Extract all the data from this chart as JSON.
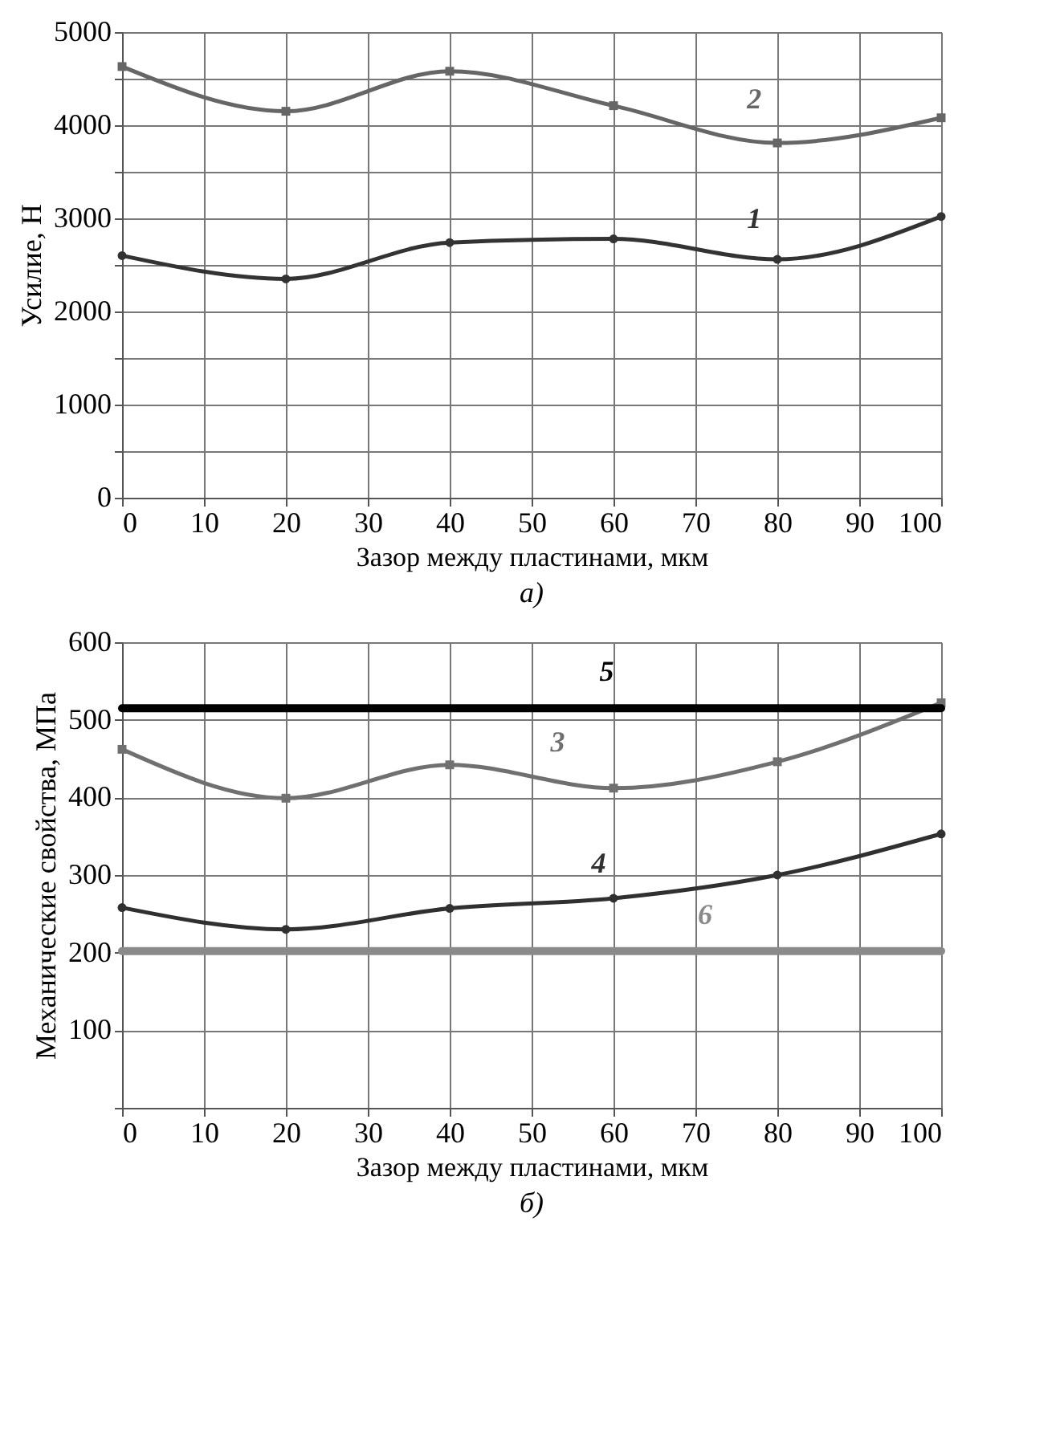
{
  "chart_data": [
    {
      "type": "line",
      "xlabel": "Зазор между пластинами, мкм",
      "ylabel": "Усилие, Н",
      "x": [
        0,
        20,
        40,
        60,
        80,
        100
      ],
      "xlim": [
        0,
        100
      ],
      "xticks": [
        0,
        10,
        20,
        30,
        40,
        50,
        60,
        70,
        80,
        90,
        100
      ],
      "ylim": [
        0,
        5000
      ],
      "yticks": [
        0,
        {
          "value": 500,
          "label": null
        },
        1000,
        {
          "value": 1500,
          "label": null
        },
        2000,
        {
          "value": 2500,
          "label": null
        },
        3000,
        {
          "value": 3500,
          "label": null
        },
        4000,
        {
          "value": 4500,
          "label": null
        },
        5000
      ],
      "grid": true,
      "line_style": "solid",
      "series": [
        {
          "name": "1",
          "color": "#333333",
          "marker": "circle",
          "values": [
            2600,
            2350,
            2740,
            2780,
            2560,
            3020
          ]
        },
        {
          "name": "2",
          "color": "#666666",
          "marker": "square",
          "values": [
            4630,
            4150,
            4580,
            4210,
            3810,
            4080
          ]
        }
      ],
      "annotations": [
        "а)"
      ]
    },
    {
      "type": "line",
      "xlabel": "Зазор между пластинами, мкм",
      "ylabel": "Механические свойства, МПа",
      "x": [
        0,
        20,
        40,
        60,
        80,
        100
      ],
      "xlim": [
        0,
        100
      ],
      "xticks": [
        0,
        10,
        20,
        30,
        40,
        50,
        60,
        70,
        80,
        90,
        100
      ],
      "ylim": [
        0,
        600
      ],
      "yticks": [
        {
          "value": 0,
          "label": null
        },
        100,
        200,
        300,
        400,
        500,
        600
      ],
      "grid": true,
      "line_style": "solid",
      "series": [
        {
          "name": "3",
          "color": "#707070",
          "marker": "square",
          "values": [
            462,
            399,
            442,
            412,
            446,
            522
          ]
        },
        {
          "name": "4",
          "color": "#303030",
          "marker": "circle",
          "values": [
            258,
            230,
            257,
            270,
            300,
            353
          ]
        },
        {
          "name": "5",
          "color": "#000000",
          "marker": "none",
          "values": [
            515,
            515,
            515,
            515,
            515,
            515
          ]
        },
        {
          "name": "6",
          "color": "#8a8a8a",
          "marker": "none",
          "values": [
            202,
            202,
            202,
            202,
            202,
            202
          ]
        }
      ],
      "annotations": [
        "б)"
      ]
    }
  ]
}
